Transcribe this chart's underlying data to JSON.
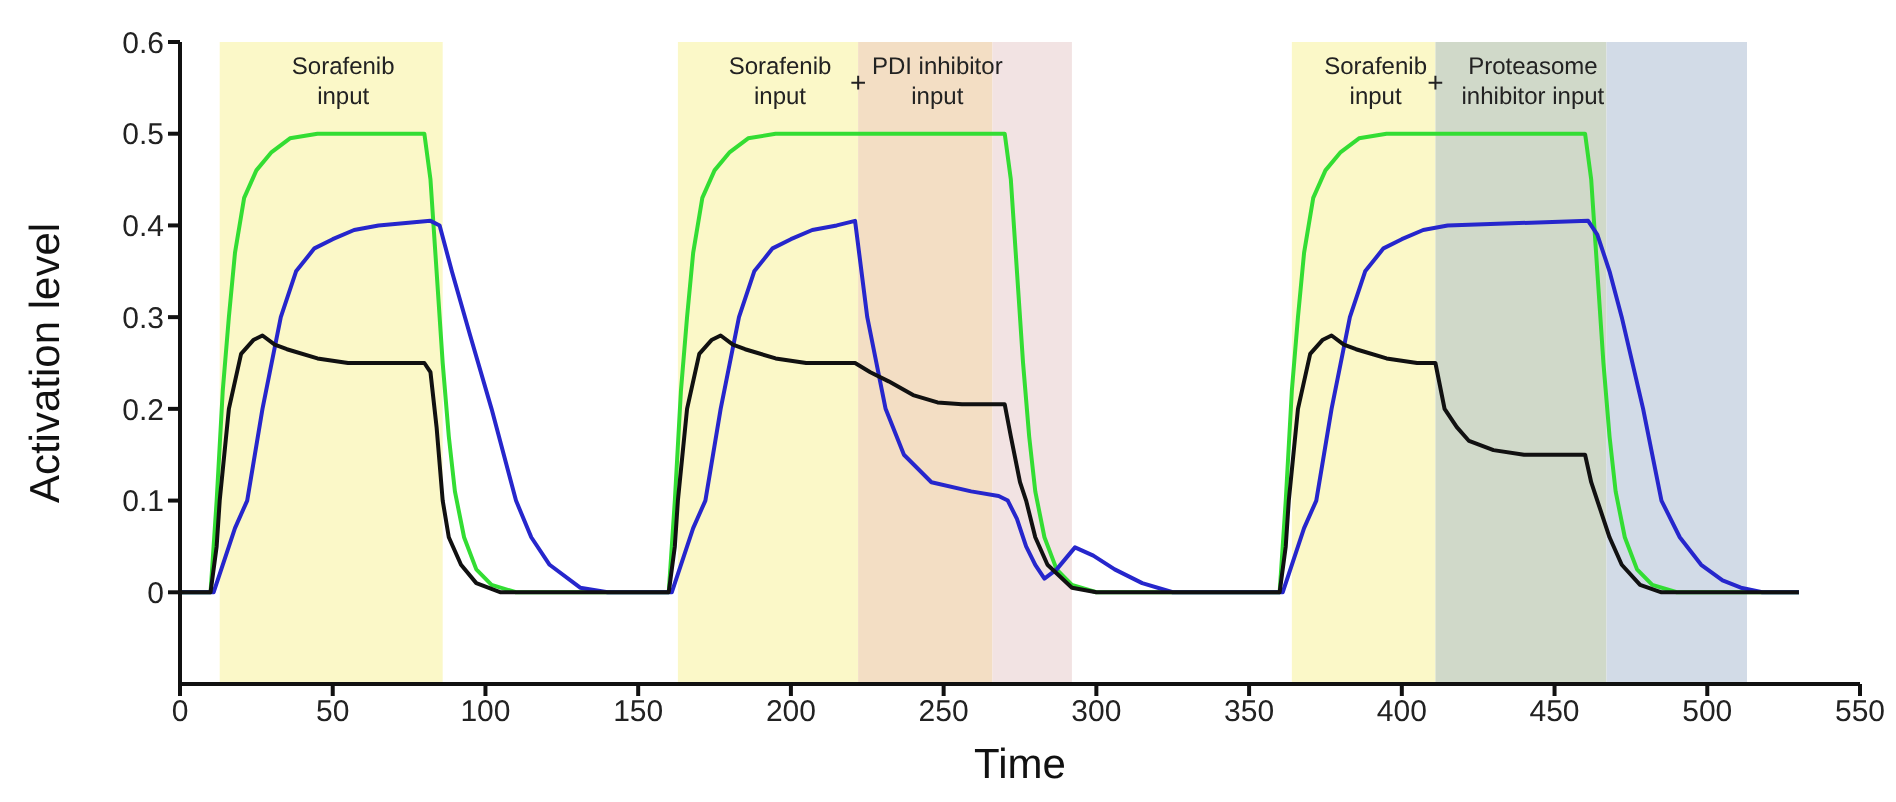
{
  "chart_data": {
    "type": "line",
    "xlabel": "Time",
    "ylabel": "Activation level",
    "xlim": [
      0,
      550
    ],
    "xticks": [
      0,
      50,
      100,
      150,
      200,
      250,
      300,
      350,
      400,
      450,
      500,
      550
    ],
    "ylim": [
      -0.1,
      0.6
    ],
    "yticks": [
      0,
      0.1,
      0.2,
      0.3,
      0.4,
      0.5,
      0.6
    ],
    "grid": false,
    "legend": false,
    "marker": "none",
    "line_style": "solid",
    "bands": [
      {
        "axis": "x",
        "from": 13,
        "to": 86,
        "label": "Sorafenib\ninput",
        "color": "#fbf8c8"
      },
      {
        "axis": "x",
        "from": 163,
        "to": 222,
        "label": "Sorafenib\ninput",
        "color": "#fbf8c8"
      },
      {
        "axis": "x",
        "from": 222,
        "to": 266,
        "label": "PDI inhibitor\ninput",
        "color": "#f3dec4"
      },
      {
        "axis": "x",
        "from": 266,
        "to": 292,
        "label": null,
        "color": "#f2e3e3"
      },
      {
        "axis": "x",
        "from": 364,
        "to": 411,
        "label": "Sorafenib\ninput",
        "color": "#fbf8c8"
      },
      {
        "axis": "x",
        "from": 411,
        "to": 467,
        "label": "Proteasome\ninhibitor input",
        "color": "#d0d9c9"
      },
      {
        "axis": "x",
        "from": 467,
        "to": 513,
        "label": null,
        "color": "#d2dbe7"
      }
    ],
    "annotations": [
      {
        "text": "+",
        "x": 222,
        "y": 0.545
      },
      {
        "text": "+",
        "x": 411,
        "y": 0.545
      }
    ],
    "series": [
      {
        "color": "#33dd33",
        "x": [
          0,
          10,
          12,
          14,
          16,
          18,
          21,
          25,
          30,
          36,
          45,
          80,
          82,
          84,
          86,
          88,
          90,
          93,
          97,
          102,
          110,
          160,
          162,
          164,
          166,
          168,
          171,
          175,
          180,
          186,
          195,
          270,
          272,
          274,
          276,
          278,
          280,
          283,
          287,
          292,
          300,
          360,
          362,
          364,
          366,
          368,
          371,
          375,
          380,
          386,
          395,
          460,
          462,
          464,
          466,
          468,
          470,
          473,
          477,
          482,
          490,
          530
        ],
        "values": [
          0,
          0,
          0.1,
          0.22,
          0.3,
          0.37,
          0.43,
          0.46,
          0.48,
          0.495,
          0.5,
          0.5,
          0.45,
          0.35,
          0.25,
          0.17,
          0.11,
          0.06,
          0.025,
          0.008,
          0,
          0,
          0.1,
          0.22,
          0.3,
          0.37,
          0.43,
          0.46,
          0.48,
          0.495,
          0.5,
          0.5,
          0.45,
          0.35,
          0.25,
          0.17,
          0.11,
          0.06,
          0.025,
          0.008,
          0,
          0,
          0.1,
          0.22,
          0.3,
          0.37,
          0.43,
          0.46,
          0.48,
          0.495,
          0.5,
          0.5,
          0.45,
          0.35,
          0.25,
          0.17,
          0.11,
          0.06,
          0.025,
          0.008,
          0,
          0
        ]
      },
      {
        "color": "#2626cc",
        "x": [
          0,
          11,
          14,
          18,
          22,
          27,
          33,
          38,
          44,
          50,
          57,
          65,
          82,
          85,
          89,
          95,
          102,
          110,
          115,
          121,
          131,
          140,
          161,
          164,
          168,
          172,
          177,
          183,
          188,
          194,
          200,
          207,
          215,
          221,
          225,
          231,
          237,
          246,
          259,
          268,
          271,
          274,
          277,
          280,
          283,
          287,
          293,
          299,
          306,
          315,
          325,
          361,
          364,
          368,
          372,
          377,
          383,
          388,
          394,
          400,
          407,
          415,
          461,
          464,
          468,
          472,
          479,
          485,
          491,
          498,
          505,
          511,
          518,
          530
        ],
        "values": [
          0,
          0,
          0.03,
          0.07,
          0.1,
          0.2,
          0.3,
          0.35,
          0.375,
          0.385,
          0.395,
          0.4,
          0.405,
          0.4,
          0.35,
          0.28,
          0.2,
          0.1,
          0.06,
          0.03,
          0.005,
          0,
          0,
          0.03,
          0.07,
          0.1,
          0.2,
          0.3,
          0.35,
          0.375,
          0.385,
          0.395,
          0.4,
          0.405,
          0.3,
          0.2,
          0.15,
          0.12,
          0.11,
          0.105,
          0.1,
          0.08,
          0.05,
          0.03,
          0.015,
          0.025,
          0.049,
          0.04,
          0.025,
          0.01,
          0,
          0,
          0.03,
          0.07,
          0.1,
          0.2,
          0.3,
          0.35,
          0.375,
          0.385,
          0.395,
          0.4,
          0.405,
          0.39,
          0.35,
          0.3,
          0.2,
          0.1,
          0.06,
          0.03,
          0.013,
          0.005,
          0,
          0
        ]
      },
      {
        "color": "#111111",
        "x": [
          0,
          10,
          12,
          13,
          16,
          20,
          24,
          27,
          31,
          35,
          45,
          55,
          80,
          82,
          84,
          86,
          88,
          92,
          97,
          105,
          160,
          162,
          163,
          166,
          170,
          174,
          177,
          181,
          185,
          195,
          205,
          221,
          226,
          232,
          240,
          248,
          256,
          270,
          272,
          275,
          277,
          280,
          284,
          292,
          300,
          360,
          362,
          363,
          366,
          370,
          374,
          377,
          381,
          385,
          395,
          405,
          411,
          414,
          418,
          422,
          430,
          440,
          460,
          462,
          464,
          468,
          472,
          478,
          485,
          530
        ],
        "values": [
          0,
          0,
          0.05,
          0.1,
          0.2,
          0.26,
          0.275,
          0.28,
          0.27,
          0.265,
          0.255,
          0.25,
          0.25,
          0.24,
          0.18,
          0.1,
          0.06,
          0.03,
          0.01,
          0,
          0,
          0.05,
          0.1,
          0.2,
          0.26,
          0.275,
          0.28,
          0.27,
          0.265,
          0.255,
          0.25,
          0.25,
          0.24,
          0.23,
          0.215,
          0.207,
          0.205,
          0.205,
          0.17,
          0.12,
          0.1,
          0.06,
          0.03,
          0.005,
          0,
          0,
          0.05,
          0.1,
          0.2,
          0.26,
          0.275,
          0.28,
          0.27,
          0.265,
          0.255,
          0.25,
          0.25,
          0.2,
          0.18,
          0.165,
          0.155,
          0.15,
          0.15,
          0.12,
          0.1,
          0.06,
          0.03,
          0.008,
          0,
          0
        ]
      }
    ]
  }
}
